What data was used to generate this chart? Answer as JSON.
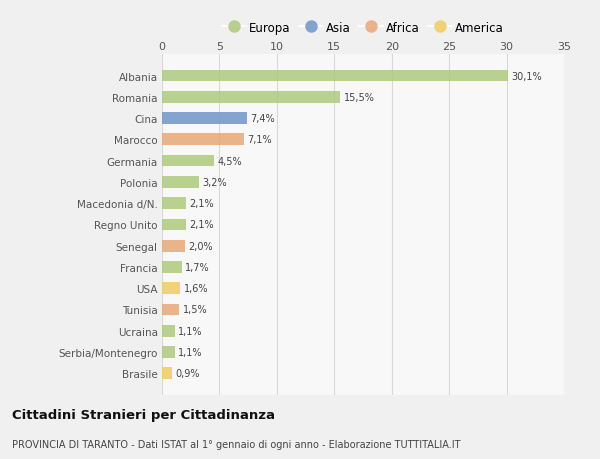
{
  "categories": [
    "Albania",
    "Romania",
    "Cina",
    "Marocco",
    "Germania",
    "Polonia",
    "Macedonia d/N.",
    "Regno Unito",
    "Senegal",
    "Francia",
    "USA",
    "Tunisia",
    "Ucraina",
    "Serbia/Montenegro",
    "Brasile"
  ],
  "values": [
    30.1,
    15.5,
    7.4,
    7.1,
    4.5,
    3.2,
    2.1,
    2.1,
    2.0,
    1.7,
    1.6,
    1.5,
    1.1,
    1.1,
    0.9
  ],
  "labels": [
    "30,1%",
    "15,5%",
    "7,4%",
    "7,1%",
    "4,5%",
    "3,2%",
    "2,1%",
    "2,1%",
    "2,0%",
    "1,7%",
    "1,6%",
    "1,5%",
    "1,1%",
    "1,1%",
    "0,9%"
  ],
  "continents": [
    "Europa",
    "Europa",
    "Asia",
    "Africa",
    "Europa",
    "Europa",
    "Europa",
    "Europa",
    "Africa",
    "Europa",
    "America",
    "Africa",
    "Europa",
    "Europa",
    "America"
  ],
  "continent_colors": {
    "Europa": "#adc97e",
    "Asia": "#6e96c8",
    "Africa": "#e8a878",
    "America": "#f0cc60"
  },
  "legend_order": [
    "Europa",
    "Asia",
    "Africa",
    "America"
  ],
  "title1": "Cittadini Stranieri per Cittadinanza",
  "title2": "PROVINCIA DI TARANTO - Dati ISTAT al 1° gennaio di ogni anno - Elaborazione TUTTITALIA.IT",
  "xlim": [
    0,
    35
  ],
  "xticks": [
    0,
    5,
    10,
    15,
    20,
    25,
    30,
    35
  ],
  "background_color": "#f0f0f0",
  "plot_bg_color": "#f8f8f8",
  "grid_color": "#d8d8d8"
}
